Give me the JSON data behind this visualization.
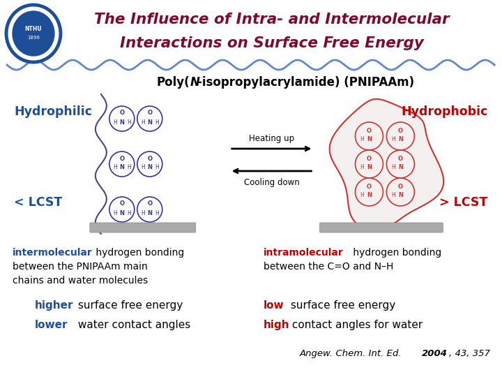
{
  "bg_color": "#ffffff",
  "title_line1": "The Influence of Intra- and Intermolecular",
  "title_line2": "Interactions on Surface Free Energy",
  "title_color": "#7b0c2e",
  "blue_color": "#1f4e99",
  "red_color": "#c00000",
  "black_color": "#000000",
  "divider_color": "#4472c4",
  "hydrophilic_label": "Hydrophilic",
  "hydrophobic_label": "Hydrophobic",
  "lcst_left": "< LCST",
  "lcst_right": "> LCST",
  "text_left_bold": "intermolecular",
  "text_left_rest1": " hydrogen bonding",
  "text_left_rest2": "between the PNIPAAm main",
  "text_left_rest3": "chains and water molecules",
  "text_right_bold": "intramolecular",
  "text_right_rest1": " hydrogen bonding",
  "text_right_rest2": "between the C=O and N–H",
  "higher_bold": "higher",
  "higher_rest": " surface free energy",
  "lower_bold": "lower",
  "lower_rest": " water contact angles",
  "low_bold": "low",
  "low_rest": " surface free energy",
  "high_bold": "high",
  "high_rest": " contact angles for water",
  "citation_normal": "Angew. Chem. Int. Ed. ",
  "citation_bold": "2004",
  "citation_end": ", 43, 357"
}
